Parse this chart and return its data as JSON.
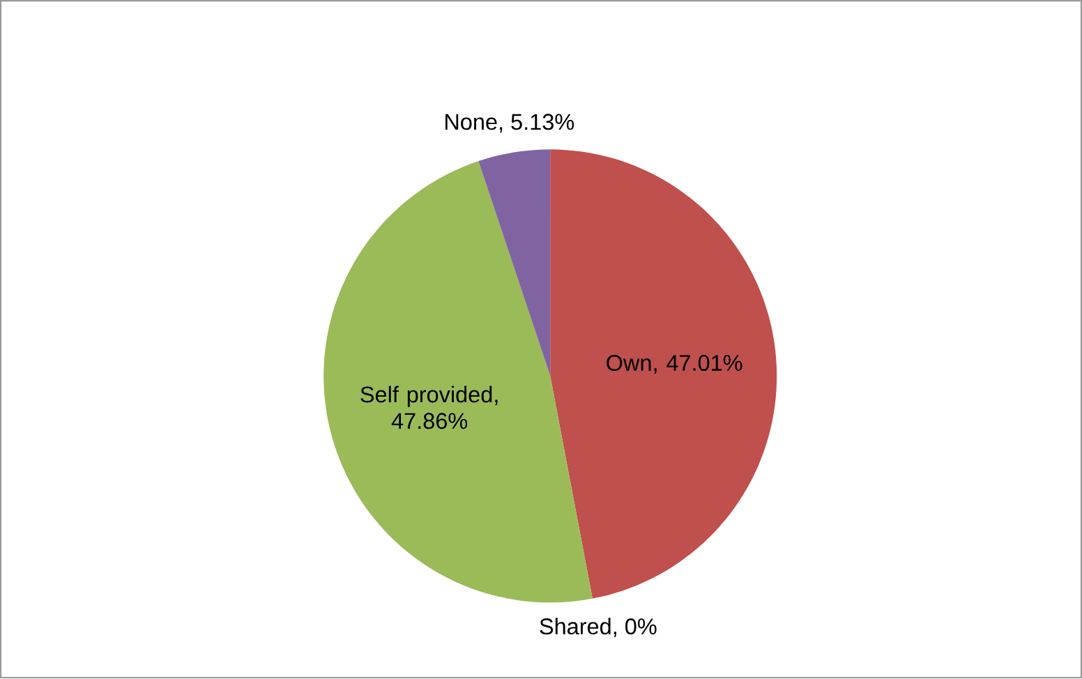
{
  "chart_data": {
    "type": "pie",
    "categories": [
      "Own",
      "Shared",
      "Self provided",
      "None"
    ],
    "values": [
      47.01,
      0,
      47.86,
      5.13
    ],
    "value_labels": [
      ", 47.01%",
      ", 0%",
      ", 47.86%",
      ", 5.13%"
    ],
    "colors": [
      "#c0504d",
      "#4f81bd",
      "#9bbb59",
      "#8064a2"
    ]
  }
}
